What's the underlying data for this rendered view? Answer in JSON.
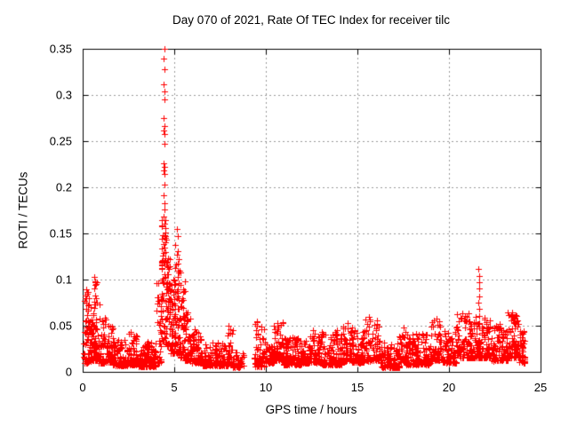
{
  "chart_data": {
    "type": "scatter",
    "title": "Day 070 of 2021, Rate Of TEC Index for receiver tilc",
    "xlabel": "GPS time / hours",
    "ylabel": "ROTI / TECUs",
    "xlim": [
      0,
      25
    ],
    "ylim": [
      0,
      0.35
    ],
    "xticks": [
      0,
      5,
      10,
      15,
      20,
      25
    ],
    "yticks": [
      0,
      0.05,
      0.1,
      0.15,
      0.2,
      0.25,
      0.3,
      0.35
    ],
    "grid": {
      "show": true,
      "color": "#9a9a9a",
      "dash": [
        2,
        3
      ]
    },
    "border_color": "#000000",
    "marker": {
      "shape": "plus",
      "size": 7,
      "color": "#ff0000"
    },
    "legend": null,
    "data_gaps": [
      [
        8.78,
        9.35
      ]
    ],
    "data_x_extent": [
      0.05,
      24.15
    ],
    "peaks": [
      {
        "x": 4.45,
        "y": 0.35
      },
      {
        "x": 5.16,
        "y": 0.155
      },
      {
        "x": 21.63,
        "y": 0.112
      },
      {
        "x": 0.64,
        "y": 0.103
      }
    ],
    "seed": 20210703,
    "segments": [
      {
        "x": [
          0.05,
          0.35
        ],
        "y": [
          0.01,
          0.09
        ],
        "n": 55,
        "k": 2.2
      },
      {
        "x": [
          0.35,
          0.6
        ],
        "y": [
          0.012,
          0.075
        ],
        "n": 45,
        "k": 2.2
      },
      {
        "x": [
          0.6,
          0.8
        ],
        "y": [
          0.012,
          0.1
        ],
        "n": 40,
        "k": 2.0
      },
      {
        "x": [
          0.8,
          1.35
        ],
        "y": [
          0.01,
          0.06
        ],
        "n": 60,
        "k": 2.4
      },
      {
        "x": [
          1.35,
          1.65
        ],
        "y": [
          0.01,
          0.055
        ],
        "n": 45,
        "k": 2.2
      },
      {
        "x": [
          1.65,
          2.5
        ],
        "y": [
          0.007,
          0.038
        ],
        "n": 110,
        "k": 2.6
      },
      {
        "x": [
          2.5,
          3.0
        ],
        "y": [
          0.008,
          0.042
        ],
        "n": 65,
        "k": 2.5
      },
      {
        "x": [
          3.0,
          4.0
        ],
        "y": [
          0.006,
          0.035
        ],
        "n": 120,
        "k": 2.6
      },
      {
        "x": [
          4.0,
          4.3
        ],
        "y": [
          0.01,
          0.1
        ],
        "n": 40,
        "k": 2.2
      },
      {
        "x": [
          4.3,
          4.55
        ],
        "y": [
          0.03,
          0.165
        ],
        "n": 60,
        "k": 1.3
      },
      {
        "x": [
          4.55,
          4.8
        ],
        "y": [
          0.025,
          0.125
        ],
        "n": 50,
        "k": 1.5
      },
      {
        "x": [
          4.8,
          5.05
        ],
        "y": [
          0.02,
          0.1
        ],
        "n": 45,
        "k": 1.7
      },
      {
        "x": [
          5.05,
          5.3
        ],
        "y": [
          0.02,
          0.15
        ],
        "n": 40,
        "k": 1.8
      },
      {
        "x": [
          5.3,
          5.6
        ],
        "y": [
          0.015,
          0.1
        ],
        "n": 45,
        "k": 2.0
      },
      {
        "x": [
          5.6,
          5.95
        ],
        "y": [
          0.012,
          0.07
        ],
        "n": 50,
        "k": 2.2
      },
      {
        "x": [
          5.95,
          6.5
        ],
        "y": [
          0.01,
          0.05
        ],
        "n": 65,
        "k": 2.4
      },
      {
        "x": [
          6.5,
          7.9
        ],
        "y": [
          0.007,
          0.032
        ],
        "n": 160,
        "k": 2.6
      },
      {
        "x": [
          7.9,
          8.2
        ],
        "y": [
          0.009,
          0.05
        ],
        "n": 32,
        "k": 2.3
      },
      {
        "x": [
          8.2,
          8.78
        ],
        "y": [
          0.005,
          0.022
        ],
        "n": 50,
        "k": 2.2
      },
      {
        "x": [
          9.35,
          9.95
        ],
        "y": [
          0.006,
          0.055
        ],
        "n": 70,
        "k": 2.4
      },
      {
        "x": [
          9.95,
          10.45
        ],
        "y": [
          0.01,
          0.035
        ],
        "n": 55,
        "k": 2.4
      },
      {
        "x": [
          10.45,
          10.95
        ],
        "y": [
          0.012,
          0.055
        ],
        "n": 60,
        "k": 2.4
      },
      {
        "x": [
          10.95,
          12.0
        ],
        "y": [
          0.008,
          0.04
        ],
        "n": 125,
        "k": 2.5
      },
      {
        "x": [
          12.0,
          13.0
        ],
        "y": [
          0.01,
          0.042
        ],
        "n": 120,
        "k": 2.5
      },
      {
        "x": [
          13.0,
          14.2
        ],
        "y": [
          0.008,
          0.045
        ],
        "n": 140,
        "k": 2.5
      },
      {
        "x": [
          14.2,
          14.7
        ],
        "y": [
          0.012,
          0.053
        ],
        "n": 60,
        "k": 2.3
      },
      {
        "x": [
          14.7,
          15.35
        ],
        "y": [
          0.01,
          0.045
        ],
        "n": 75,
        "k": 2.4
      },
      {
        "x": [
          15.35,
          16.25
        ],
        "y": [
          0.012,
          0.058
        ],
        "n": 100,
        "k": 2.3
      },
      {
        "x": [
          16.25,
          17.3
        ],
        "y": [
          0.005,
          0.032
        ],
        "n": 115,
        "k": 2.5
      },
      {
        "x": [
          17.3,
          17.65
        ],
        "y": [
          0.01,
          0.05
        ],
        "n": 40,
        "k": 2.3
      },
      {
        "x": [
          17.65,
          19.0
        ],
        "y": [
          0.008,
          0.042
        ],
        "n": 145,
        "k": 2.5
      },
      {
        "x": [
          19.0,
          19.6
        ],
        "y": [
          0.012,
          0.057
        ],
        "n": 65,
        "k": 2.3
      },
      {
        "x": [
          19.6,
          20.4
        ],
        "y": [
          0.01,
          0.045
        ],
        "n": 85,
        "k": 2.4
      },
      {
        "x": [
          20.4,
          21.3
        ],
        "y": [
          0.015,
          0.065
        ],
        "n": 100,
        "k": 2.3
      },
      {
        "x": [
          21.3,
          22.3
        ],
        "y": [
          0.015,
          0.06
        ],
        "n": 110,
        "k": 2.3
      },
      {
        "x": [
          22.3,
          23.2
        ],
        "y": [
          0.012,
          0.05
        ],
        "n": 100,
        "k": 2.4
      },
      {
        "x": [
          23.2,
          23.8
        ],
        "y": [
          0.015,
          0.065
        ],
        "n": 75,
        "k": 2.3
      },
      {
        "x": [
          23.8,
          24.15
        ],
        "y": [
          0.01,
          0.045
        ],
        "n": 45,
        "k": 2.3
      }
    ],
    "outliers": [
      [
        4.45,
        0.35
      ],
      [
        4.44,
        0.339
      ],
      [
        4.46,
        0.328
      ],
      [
        4.44,
        0.312
      ],
      [
        4.45,
        0.304
      ],
      [
        4.46,
        0.295
      ],
      [
        4.44,
        0.275
      ],
      [
        4.45,
        0.266
      ],
      [
        4.43,
        0.262
      ],
      [
        4.46,
        0.258
      ],
      [
        4.45,
        0.247
      ],
      [
        4.43,
        0.226
      ],
      [
        4.45,
        0.222
      ],
      [
        4.44,
        0.218
      ],
      [
        4.46,
        0.214
      ],
      [
        4.45,
        0.203
      ],
      [
        4.44,
        0.191
      ],
      [
        4.47,
        0.183
      ],
      [
        4.45,
        0.176
      ],
      [
        4.43,
        0.168
      ],
      [
        4.48,
        0.161
      ],
      [
        4.52,
        0.156
      ],
      [
        4.5,
        0.151
      ],
      [
        4.47,
        0.148
      ],
      [
        4.55,
        0.143
      ],
      [
        4.42,
        0.138
      ],
      [
        4.33,
        0.134
      ],
      [
        4.36,
        0.121
      ],
      [
        4.3,
        0.112
      ],
      [
        5.16,
        0.155
      ],
      [
        5.2,
        0.147
      ],
      [
        5.18,
        0.131
      ],
      [
        5.22,
        0.122
      ],
      [
        5.17,
        0.117
      ],
      [
        5.21,
        0.11
      ],
      [
        5.19,
        0.103
      ],
      [
        5.23,
        0.096
      ],
      [
        5.18,
        0.089
      ],
      [
        5.35,
        0.108
      ],
      [
        5.32,
        0.094
      ],
      [
        0.64,
        0.103
      ],
      [
        0.66,
        0.097
      ],
      [
        0.63,
        0.09
      ],
      [
        0.67,
        0.083
      ],
      [
        0.65,
        0.076
      ],
      [
        0.62,
        0.069
      ],
      [
        0.15,
        0.083
      ],
      [
        0.18,
        0.075
      ],
      [
        0.21,
        0.068
      ],
      [
        0.92,
        0.073
      ],
      [
        1.05,
        0.056
      ],
      [
        21.62,
        0.112
      ],
      [
        21.65,
        0.104
      ],
      [
        21.63,
        0.097
      ],
      [
        21.66,
        0.09
      ],
      [
        21.64,
        0.082
      ],
      [
        21.61,
        0.075
      ],
      [
        21.67,
        0.068
      ],
      [
        21.63,
        0.061
      ],
      [
        23.45,
        0.064
      ],
      [
        23.55,
        0.059
      ],
      [
        15.62,
        0.06
      ],
      [
        16.05,
        0.056
      ],
      [
        19.3,
        0.058
      ],
      [
        10.62,
        0.053
      ],
      [
        14.45,
        0.053
      ],
      [
        9.5,
        0.055
      ],
      [
        7.98,
        0.05
      ],
      [
        20.75,
        0.063
      ],
      [
        20.95,
        0.06
      ],
      [
        22.75,
        0.052
      ],
      [
        12.55,
        0.045
      ],
      [
        2.62,
        0.043
      ]
    ]
  }
}
